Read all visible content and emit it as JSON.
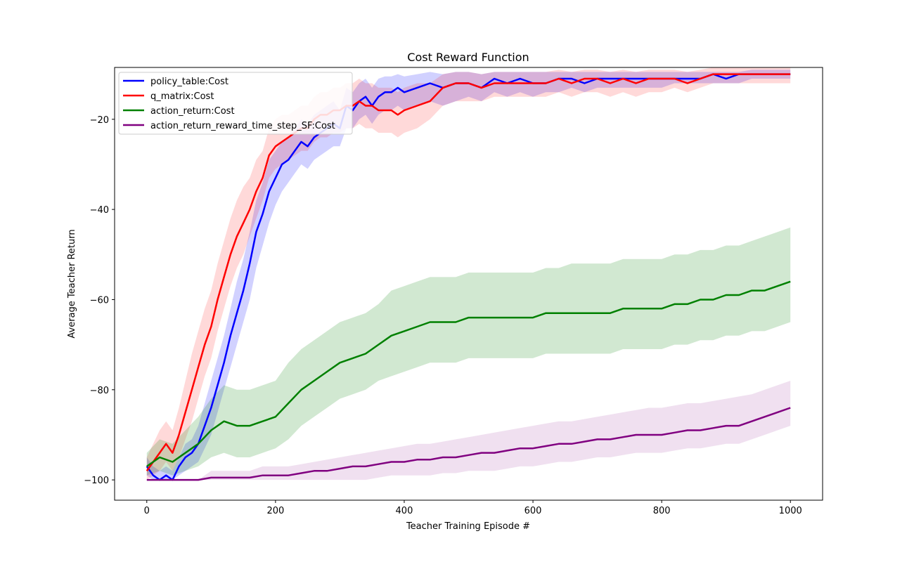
{
  "chart_data": {
    "type": "line",
    "title": "Cost Reward Function",
    "xlabel": "Teacher Training Episode #",
    "ylabel": "Average Teacher Return",
    "xlim": [
      -50,
      1050
    ],
    "ylim": [
      -104.5,
      -8.5
    ],
    "xticks": [
      0,
      200,
      400,
      600,
      800,
      1000
    ],
    "yticks": [
      -100,
      -80,
      -60,
      -40,
      -20
    ],
    "grid": false,
    "legend_position": "top-left",
    "series": [
      {
        "name": "policy_table:Cost",
        "color": "#0000ff",
        "band_alpha": 0.18,
        "x": [
          0,
          10,
          20,
          30,
          40,
          50,
          60,
          70,
          80,
          90,
          100,
          110,
          120,
          130,
          140,
          150,
          160,
          170,
          180,
          190,
          200,
          210,
          220,
          230,
          240,
          250,
          260,
          270,
          280,
          290,
          300,
          310,
          320,
          330,
          340,
          350,
          360,
          370,
          380,
          390,
          400,
          420,
          440,
          460,
          480,
          500,
          520,
          540,
          560,
          580,
          600,
          620,
          640,
          660,
          680,
          700,
          720,
          740,
          760,
          780,
          800,
          820,
          840,
          860,
          880,
          900,
          920,
          940,
          960,
          980,
          1000
        ],
        "y": [
          -97,
          -99,
          -100,
          -99,
          -100,
          -97,
          -95,
          -94,
          -92,
          -88,
          -84,
          -79,
          -74,
          -68,
          -63,
          -58,
          -52,
          -45,
          -41,
          -36,
          -33,
          -30,
          -29,
          -27,
          -25,
          -26,
          -24,
          -23,
          -22,
          -21,
          -22,
          -17,
          -18,
          -16,
          -15,
          -17,
          -15,
          -14,
          -14,
          -13,
          -14,
          -13,
          -12,
          -13,
          -12,
          -12,
          -13,
          -11,
          -12,
          -11,
          -12,
          -12,
          -11,
          -11,
          -12,
          -11,
          -11,
          -11,
          -11,
          -11,
          -11,
          -11,
          -11,
          -11,
          -10,
          -11,
          -10,
          -10,
          -10,
          -10,
          -10
        ],
        "lo": [
          -99,
          -100,
          -100,
          -100,
          -100,
          -99,
          -98,
          -97,
          -96,
          -93,
          -90,
          -85,
          -80,
          -75,
          -70,
          -65,
          -60,
          -53,
          -48,
          -43,
          -39,
          -36,
          -34,
          -32,
          -30,
          -31,
          -29,
          -28,
          -27,
          -26,
          -26,
          -22,
          -22,
          -20,
          -19,
          -21,
          -19,
          -18,
          -18,
          -17,
          -18,
          -17,
          -16,
          -17,
          -16,
          -15,
          -16,
          -14,
          -15,
          -14,
          -15,
          -14,
          -14,
          -13,
          -14,
          -13,
          -13,
          -13,
          -13,
          -13,
          -13,
          -12,
          -12,
          -12,
          -12,
          -12,
          -12,
          -11,
          -11,
          -11,
          -11
        ],
        "hi": [
          -95,
          -97,
          -98,
          -97,
          -98,
          -95,
          -92,
          -91,
          -88,
          -83,
          -78,
          -73,
          -68,
          -62,
          -56,
          -51,
          -45,
          -38,
          -34,
          -29,
          -27,
          -25,
          -24,
          -22,
          -20,
          -21,
          -19,
          -18,
          -17,
          -16,
          -18,
          -13,
          -14,
          -12,
          -11,
          -13,
          -11,
          -10.5,
          -10.5,
          -10,
          -10.5,
          -10,
          -9.5,
          -10,
          -9.5,
          -9.5,
          -10,
          -9.5,
          -9.5,
          -9.5,
          -9.5,
          -9.5,
          -9.5,
          -9.5,
          -9.5,
          -9.5,
          -9.5,
          -9.5,
          -9.5,
          -9.5,
          -9.5,
          -9.5,
          -9.5,
          -9.5,
          -9.5,
          -9.5,
          -9.5,
          -9,
          -9,
          -9,
          -9
        ]
      },
      {
        "name": "q_matrix:Cost",
        "color": "#ff0000",
        "band_alpha": 0.15,
        "x": [
          0,
          10,
          20,
          30,
          40,
          50,
          60,
          70,
          80,
          90,
          100,
          110,
          120,
          130,
          140,
          150,
          160,
          170,
          180,
          190,
          200,
          210,
          220,
          230,
          240,
          250,
          260,
          270,
          280,
          290,
          300,
          310,
          320,
          330,
          340,
          350,
          360,
          370,
          380,
          390,
          400,
          420,
          440,
          460,
          480,
          500,
          520,
          540,
          560,
          580,
          600,
          620,
          640,
          660,
          680,
          700,
          720,
          740,
          760,
          780,
          800,
          820,
          840,
          860,
          880,
          900,
          920,
          940,
          960,
          980,
          1000
        ],
        "y": [
          -98,
          -96,
          -94,
          -92,
          -94,
          -90,
          -85,
          -80,
          -75,
          -70,
          -66,
          -60,
          -55,
          -50,
          -46,
          -43,
          -40,
          -36,
          -33,
          -28,
          -26,
          -25,
          -24,
          -23,
          -22,
          -22,
          -20,
          -19,
          -19,
          -18,
          -18,
          -17,
          -17,
          -16,
          -17,
          -17,
          -18,
          -18,
          -18,
          -19,
          -18,
          -17,
          -16,
          -13,
          -12,
          -12,
          -13,
          -12,
          -12,
          -12,
          -12,
          -12,
          -11,
          -12,
          -11,
          -11,
          -12,
          -11,
          -12,
          -11,
          -11,
          -11,
          -12,
          -11,
          -10,
          -10,
          -10,
          -10,
          -10,
          -10,
          -10
        ],
        "lo": [
          -100,
          -99,
          -98,
          -96,
          -98,
          -95,
          -91,
          -87,
          -82,
          -77,
          -73,
          -67,
          -62,
          -57,
          -53,
          -50,
          -46,
          -42,
          -38,
          -33,
          -31,
          -30,
          -29,
          -28,
          -27,
          -27,
          -25,
          -24,
          -24,
          -23,
          -23,
          -22,
          -22,
          -21,
          -22,
          -22,
          -23,
          -23,
          -23,
          -24,
          -23,
          -22,
          -20,
          -17,
          -16,
          -16,
          -16,
          -15,
          -15,
          -15,
          -15,
          -15,
          -14,
          -15,
          -14,
          -14,
          -15,
          -14,
          -15,
          -14,
          -14,
          -13,
          -14,
          -13,
          -12,
          -12,
          -12,
          -12,
          -12,
          -12,
          -12
        ],
        "hi": [
          -95,
          -92,
          -89,
          -87,
          -89,
          -84,
          -78,
          -72,
          -67,
          -62,
          -58,
          -52,
          -47,
          -42,
          -38,
          -35,
          -33,
          -29,
          -27,
          -22,
          -20,
          -19,
          -19,
          -18,
          -17,
          -17,
          -15,
          -14,
          -14,
          -13,
          -13,
          -12,
          -12,
          -11,
          -12,
          -12,
          -13,
          -13,
          -13,
          -14,
          -13,
          -12,
          -12,
          -10,
          -9.5,
          -9.5,
          -10,
          -9.5,
          -9.5,
          -9.5,
          -9.5,
          -9.5,
          -9,
          -9.5,
          -9,
          -9,
          -9.5,
          -9,
          -9.5,
          -9,
          -9,
          -9,
          -9.5,
          -9,
          -8.5,
          -8.5,
          -8.5,
          -8.5,
          -8.5,
          -8.5,
          -8.5
        ]
      },
      {
        "name": "action_return:Cost",
        "color": "#008000",
        "band_alpha": 0.18,
        "x": [
          0,
          20,
          40,
          60,
          80,
          100,
          120,
          140,
          160,
          180,
          200,
          220,
          240,
          260,
          280,
          300,
          320,
          340,
          360,
          380,
          400,
          420,
          440,
          460,
          480,
          500,
          520,
          540,
          560,
          580,
          600,
          620,
          640,
          660,
          680,
          700,
          720,
          740,
          760,
          780,
          800,
          820,
          840,
          860,
          880,
          900,
          920,
          940,
          960,
          980,
          1000
        ],
        "y": [
          -97,
          -95,
          -96,
          -94,
          -92,
          -89,
          -87,
          -88,
          -88,
          -87,
          -86,
          -83,
          -80,
          -78,
          -76,
          -74,
          -73,
          -72,
          -70,
          -68,
          -67,
          -66,
          -65,
          -65,
          -65,
          -64,
          -64,
          -64,
          -64,
          -64,
          -64,
          -63,
          -63,
          -63,
          -63,
          -63,
          -63,
          -62,
          -62,
          -62,
          -62,
          -61,
          -61,
          -60,
          -60,
          -59,
          -59,
          -58,
          -58,
          -57,
          -56
        ],
        "lo": [
          -99,
          -98,
          -99,
          -98,
          -97,
          -95,
          -94,
          -95,
          -95,
          -94,
          -93,
          -91,
          -88,
          -86,
          -84,
          -82,
          -81,
          -80,
          -78,
          -77,
          -76,
          -75,
          -74,
          -74,
          -74,
          -73,
          -73,
          -73,
          -73,
          -73,
          -73,
          -72,
          -72,
          -72,
          -72,
          -72,
          -72,
          -71,
          -71,
          -71,
          -71,
          -70,
          -70,
          -69,
          -69,
          -68,
          -68,
          -67,
          -67,
          -66,
          -65
        ],
        "hi": [
          -94,
          -91,
          -92,
          -89,
          -86,
          -82,
          -79,
          -80,
          -80,
          -79,
          -78,
          -74,
          -71,
          -69,
          -67,
          -65,
          -64,
          -63,
          -61,
          -58,
          -57,
          -56,
          -55,
          -55,
          -55,
          -54,
          -54,
          -54,
          -54,
          -54,
          -54,
          -53,
          -53,
          -52,
          -52,
          -52,
          -52,
          -51,
          -51,
          -51,
          -51,
          -50,
          -50,
          -49,
          -49,
          -48,
          -48,
          -47,
          -46,
          -45,
          -44
        ]
      },
      {
        "name": "action_return_reward_time_step_SF:Cost",
        "color": "#800080",
        "band_alpha": 0.12,
        "x": [
          0,
          20,
          40,
          60,
          80,
          100,
          120,
          140,
          160,
          180,
          200,
          220,
          240,
          260,
          280,
          300,
          320,
          340,
          360,
          380,
          400,
          420,
          440,
          460,
          480,
          500,
          520,
          540,
          560,
          580,
          600,
          620,
          640,
          660,
          680,
          700,
          720,
          740,
          760,
          780,
          800,
          820,
          840,
          860,
          880,
          900,
          920,
          940,
          960,
          980,
          1000
        ],
        "y": [
          -100,
          -100,
          -100,
          -100,
          -100,
          -99.5,
          -99.5,
          -99.5,
          -99.5,
          -99,
          -99,
          -99,
          -98.5,
          -98,
          -98,
          -97.5,
          -97,
          -97,
          -96.5,
          -96,
          -96,
          -95.5,
          -95.5,
          -95,
          -95,
          -94.5,
          -94,
          -94,
          -93.5,
          -93,
          -93,
          -92.5,
          -92,
          -92,
          -91.5,
          -91,
          -91,
          -90.5,
          -90,
          -90,
          -90,
          -89.5,
          -89,
          -89,
          -88.5,
          -88,
          -88,
          -87,
          -86,
          -85,
          -84
        ],
        "lo": [
          -100,
          -100,
          -100,
          -100,
          -100,
          -100,
          -100,
          -100,
          -100,
          -100,
          -100,
          -100,
          -100,
          -100,
          -100,
          -100,
          -100,
          -100,
          -99.5,
          -99,
          -99,
          -99,
          -99,
          -98.5,
          -98.5,
          -98,
          -98,
          -98,
          -97.5,
          -97,
          -97,
          -96.5,
          -96,
          -96,
          -95.5,
          -95,
          -95,
          -94.5,
          -94,
          -94,
          -94,
          -93.5,
          -93,
          -93,
          -92.5,
          -92,
          -92,
          -91,
          -90,
          -89,
          -88
        ],
        "hi": [
          -100,
          -100,
          -100,
          -100,
          -100,
          -98,
          -98,
          -98,
          -98,
          -97,
          -97,
          -97,
          -96.5,
          -96,
          -95.5,
          -95,
          -94.5,
          -94,
          -93.5,
          -93,
          -92.5,
          -92,
          -92,
          -91.5,
          -91,
          -90.5,
          -90,
          -89.5,
          -89,
          -88.5,
          -88,
          -87.5,
          -87,
          -87,
          -86.5,
          -86,
          -85.5,
          -85,
          -84.5,
          -84,
          -84,
          -83.5,
          -83,
          -83,
          -82.5,
          -82,
          -81.5,
          -81,
          -80,
          -79,
          -78
        ]
      }
    ]
  }
}
